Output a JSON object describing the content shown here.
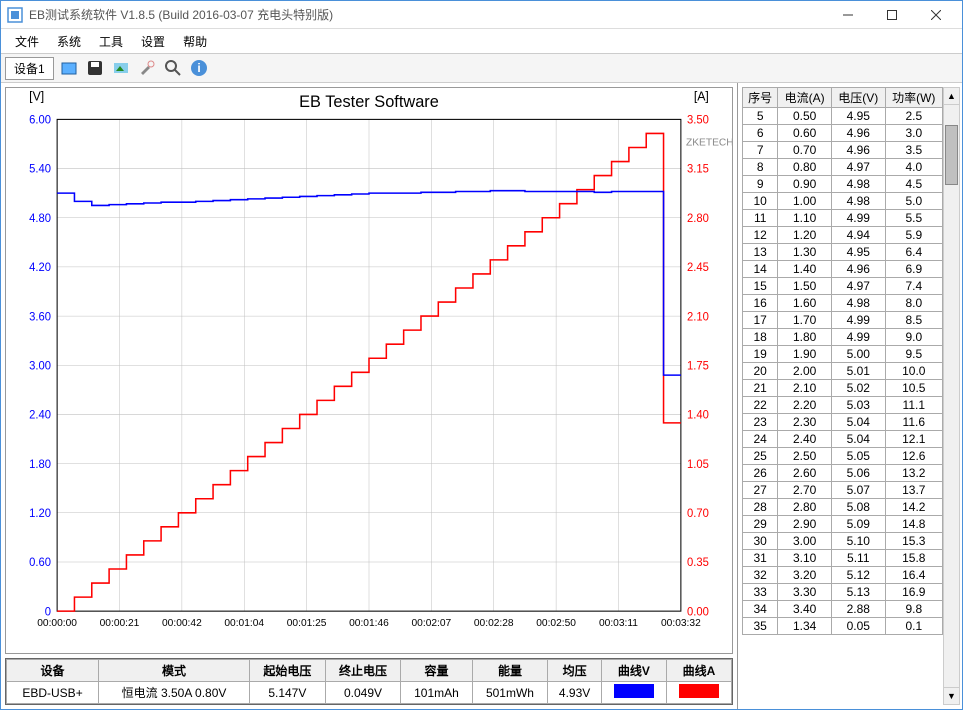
{
  "window": {
    "title": "EB测试系统软件 V1.8.5 (Build 2016-03-07 充电头特别版)"
  },
  "menu": {
    "items": [
      "文件",
      "系统",
      "工具",
      "设置",
      "帮助"
    ]
  },
  "toolbar": {
    "tab_label": "设备1"
  },
  "chart": {
    "title": "EB Tester Software",
    "watermark": "ZKETECH",
    "y_left_label": "[V]",
    "y_right_label": "[A]",
    "y_left_ticks": [
      "6.00",
      "5.40",
      "4.80",
      "4.20",
      "3.60",
      "3.00",
      "2.40",
      "1.80",
      "1.20",
      "0.60",
      "0"
    ],
    "y_right_ticks": [
      "3.50",
      "3.15",
      "2.80",
      "2.45",
      "2.10",
      "1.75",
      "1.40",
      "1.05",
      "0.70",
      "0.35",
      "0.00"
    ],
    "x_ticks": [
      "00:00:00",
      "00:00:21",
      "00:00:42",
      "00:01:04",
      "00:01:25",
      "00:01:46",
      "00:02:07",
      "00:02:28",
      "00:02:50",
      "00:03:11",
      "00:03:32"
    ],
    "voltage_color": "#0000ff",
    "current_color": "#ff0000",
    "grid_color": "#c0c0c0",
    "axis_color": "#000000",
    "voltage_data": [
      5.1,
      5.0,
      4.95,
      4.96,
      4.97,
      4.98,
      4.99,
      4.99,
      5.0,
      5.01,
      5.02,
      5.03,
      5.04,
      5.05,
      5.06,
      5.07,
      5.08,
      5.09,
      5.1,
      5.1,
      5.1,
      5.11,
      5.11,
      5.12,
      5.12,
      5.13,
      5.13,
      5.12,
      5.12,
      5.12,
      5.12,
      5.11,
      5.12,
      5.12,
      5.12,
      2.88,
      2.88
    ],
    "current_data": [
      0.0,
      0.1,
      0.2,
      0.3,
      0.4,
      0.5,
      0.6,
      0.7,
      0.8,
      0.9,
      1.0,
      1.1,
      1.2,
      1.3,
      1.4,
      1.5,
      1.6,
      1.7,
      1.8,
      1.9,
      2.0,
      2.1,
      2.2,
      2.3,
      2.4,
      2.5,
      2.6,
      2.7,
      2.8,
      2.9,
      3.0,
      3.1,
      3.2,
      3.3,
      3.4,
      1.34,
      1.34
    ]
  },
  "summary": {
    "headers": [
      "设备",
      "模式",
      "起始电压",
      "终止电压",
      "容量",
      "能量",
      "均压",
      "曲线V",
      "曲线A"
    ],
    "row": {
      "device": "EBD-USB+",
      "mode": "恒电流  3.50A  0.80V",
      "start_v": "5.147V",
      "end_v": "0.049V",
      "capacity": "101mAh",
      "energy": "501mWh",
      "avg_v": "4.93V"
    },
    "curve_v_color": "#0000ff",
    "curve_a_color": "#ff0000"
  },
  "data_table": {
    "headers": [
      "序号",
      "电流(A)",
      "电压(V)",
      "功率(W)"
    ],
    "rows": [
      [
        "5",
        "0.50",
        "4.95",
        "2.5"
      ],
      [
        "6",
        "0.60",
        "4.96",
        "3.0"
      ],
      [
        "7",
        "0.70",
        "4.96",
        "3.5"
      ],
      [
        "8",
        "0.80",
        "4.97",
        "4.0"
      ],
      [
        "9",
        "0.90",
        "4.98",
        "4.5"
      ],
      [
        "10",
        "1.00",
        "4.98",
        "5.0"
      ],
      [
        "11",
        "1.10",
        "4.99",
        "5.5"
      ],
      [
        "12",
        "1.20",
        "4.94",
        "5.9"
      ],
      [
        "13",
        "1.30",
        "4.95",
        "6.4"
      ],
      [
        "14",
        "1.40",
        "4.96",
        "6.9"
      ],
      [
        "15",
        "1.50",
        "4.97",
        "7.4"
      ],
      [
        "16",
        "1.60",
        "4.98",
        "8.0"
      ],
      [
        "17",
        "1.70",
        "4.99",
        "8.5"
      ],
      [
        "18",
        "1.80",
        "4.99",
        "9.0"
      ],
      [
        "19",
        "1.90",
        "5.00",
        "9.5"
      ],
      [
        "20",
        "2.00",
        "5.01",
        "10.0"
      ],
      [
        "21",
        "2.10",
        "5.02",
        "10.5"
      ],
      [
        "22",
        "2.20",
        "5.03",
        "11.1"
      ],
      [
        "23",
        "2.30",
        "5.04",
        "11.6"
      ],
      [
        "24",
        "2.40",
        "5.04",
        "12.1"
      ],
      [
        "25",
        "2.50",
        "5.05",
        "12.6"
      ],
      [
        "26",
        "2.60",
        "5.06",
        "13.2"
      ],
      [
        "27",
        "2.70",
        "5.07",
        "13.7"
      ],
      [
        "28",
        "2.80",
        "5.08",
        "14.2"
      ],
      [
        "29",
        "2.90",
        "5.09",
        "14.8"
      ],
      [
        "30",
        "3.00",
        "5.10",
        "15.3"
      ],
      [
        "31",
        "3.10",
        "5.11",
        "15.8"
      ],
      [
        "32",
        "3.20",
        "5.12",
        "16.4"
      ],
      [
        "33",
        "3.30",
        "5.13",
        "16.9"
      ],
      [
        "34",
        "3.40",
        "2.88",
        "9.8"
      ],
      [
        "35",
        "1.34",
        "0.05",
        "0.1"
      ]
    ]
  }
}
